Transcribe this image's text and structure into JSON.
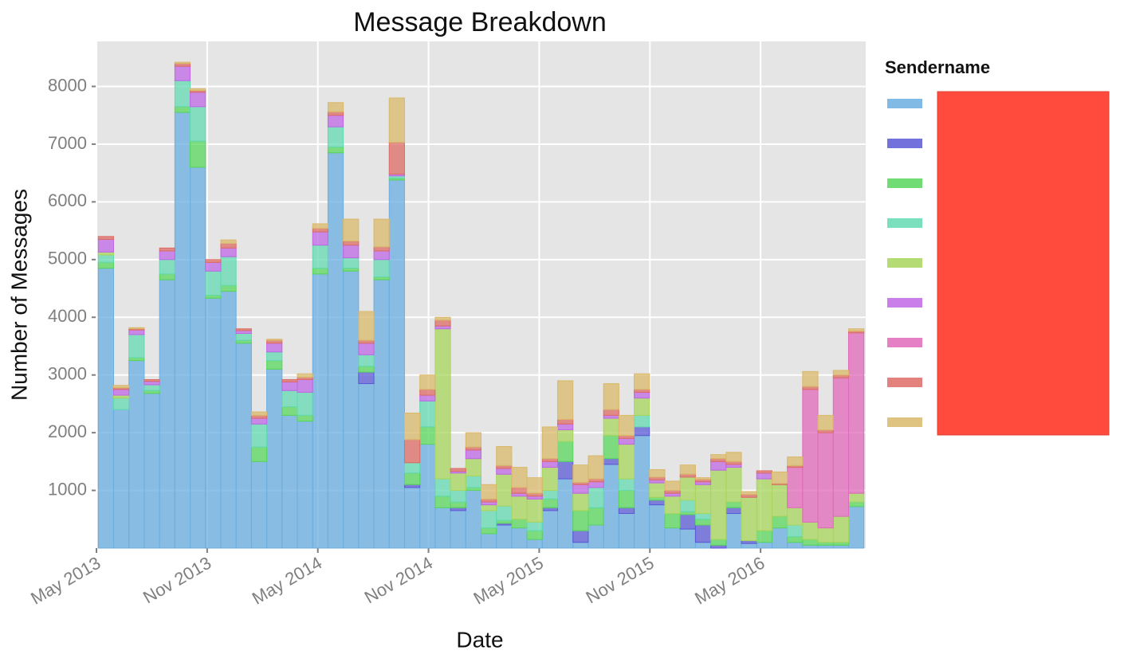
{
  "chart_data": {
    "type": "histogram",
    "title": "Message Breakdown",
    "x_label": "Date",
    "y_label": "Number of Messages",
    "legend_title": "Sendername",
    "bins": [
      0.1,
      0.93,
      1.76,
      2.59,
      3.42,
      4.25,
      5.08,
      5.91,
      6.74,
      7.57,
      8.4,
      9.23,
      10.06,
      10.89,
      11.72,
      12.55,
      13.38,
      14.21,
      15.04,
      15.87,
      16.7,
      17.53,
      18.36,
      19.19,
      20.02,
      20.85,
      21.68,
      22.51,
      23.34,
      24.17,
      25,
      25.83,
      26.66,
      27.49,
      28.32,
      29.15,
      29.98,
      30.81,
      31.64,
      32.47,
      33.3,
      34.13,
      34.96,
      35.79,
      36.62,
      37.45,
      38.28,
      39.11,
      39.94,
      40.77,
      41.6
    ],
    "stacked": true,
    "grid": true,
    "legend": "right",
    "xlim": [
      0,
      41.7
    ],
    "xticks": [
      {
        "value": 0,
        "label": "May 2013"
      },
      {
        "value": 6,
        "label": "Nov 2013"
      },
      {
        "value": 12,
        "label": "May 2014"
      },
      {
        "value": 18,
        "label": "Nov 2014"
      },
      {
        "value": 24,
        "label": "May 2015"
      },
      {
        "value": 30,
        "label": "Nov 2015"
      },
      {
        "value": 36,
        "label": "May 2016"
      }
    ],
    "ylim": [
      0,
      8780
    ],
    "yticks": [
      1000,
      2000,
      3000,
      4000,
      5000,
      6000,
      7000,
      8000
    ],
    "series": [
      {
        "color": "#6aaee0",
        "values": [
          4850,
          2400,
          3250,
          2680,
          4650,
          7550,
          6600,
          4330,
          4450,
          3550,
          1500,
          3100,
          2300,
          2200,
          4750,
          6850,
          4800,
          2850,
          4650,
          6380,
          1050,
          1800,
          700,
          650,
          1000,
          250,
          400,
          350,
          150,
          650,
          1200,
          100,
          400,
          1450,
          600,
          1950,
          750,
          350,
          330,
          100,
          0,
          600,
          80,
          100,
          350,
          100,
          50,
          50,
          50,
          720
        ]
      },
      {
        "color": "#5b59d6",
        "values": [
          0,
          0,
          0,
          0,
          0,
          0,
          0,
          0,
          0,
          0,
          0,
          0,
          0,
          0,
          0,
          0,
          0,
          200,
          0,
          0,
          50,
          0,
          0,
          50,
          0,
          0,
          30,
          0,
          0,
          50,
          300,
          200,
          0,
          100,
          100,
          150,
          80,
          0,
          250,
          300,
          50,
          100,
          50,
          0,
          0,
          0,
          0,
          0,
          0,
          0
        ]
      },
      {
        "color": "#58d65c",
        "values": [
          100,
          0,
          50,
          50,
          100,
          100,
          450,
          50,
          100,
          50,
          250,
          150,
          150,
          100,
          100,
          100,
          50,
          100,
          50,
          30,
          200,
          300,
          200,
          100,
          50,
          100,
          50,
          150,
          150,
          150,
          350,
          350,
          300,
          400,
          300,
          0,
          50,
          250,
          50,
          100,
          100,
          100,
          0,
          200,
          200,
          100,
          100,
          50,
          50,
          80
        ]
      },
      {
        "color": "#62d9b0",
        "values": [
          130,
          200,
          400,
          100,
          250,
          450,
          600,
          420,
          500,
          120,
          400,
          150,
          280,
          400,
          400,
          350,
          180,
          200,
          300,
          40,
          180,
          450,
          300,
          200,
          200,
          300,
          250,
          0,
          150,
          150,
          0,
          0,
          350,
          0,
          200,
          200,
          0,
          0,
          200,
          100,
          0,
          0,
          0,
          0,
          0,
          200,
          0,
          0,
          0,
          0
        ]
      },
      {
        "color": "#a8d65c",
        "values": [
          50,
          50,
          0,
          0,
          0,
          0,
          0,
          0,
          0,
          0,
          0,
          0,
          0,
          0,
          0,
          0,
          0,
          0,
          0,
          0,
          0,
          0,
          2600,
          300,
          300,
          100,
          550,
          400,
          400,
          400,
          200,
          300,
          0,
          300,
          600,
          300,
          250,
          300,
          400,
          500,
          1200,
          600,
          750,
          900,
          550,
          300,
          300,
          250,
          450,
          150
        ]
      },
      {
        "color": "#bf67e6",
        "values": [
          220,
          100,
          80,
          60,
          150,
          250,
          250,
          150,
          150,
          50,
          100,
          150,
          150,
          220,
          230,
          200,
          220,
          200,
          150,
          30,
          0,
          100,
          50,
          30,
          150,
          50,
          100,
          50,
          50,
          100,
          100,
          150,
          100,
          50,
          100,
          100,
          50,
          50,
          0,
          50,
          150,
          50,
          0,
          100,
          0,
          0,
          0,
          0,
          0,
          0
        ]
      },
      {
        "color": "#e06aba",
        "values": [
          0,
          0,
          0,
          0,
          0,
          0,
          0,
          0,
          0,
          0,
          0,
          0,
          0,
          0,
          0,
          0,
          0,
          0,
          0,
          0,
          0,
          0,
          0,
          0,
          0,
          0,
          0,
          0,
          0,
          0,
          0,
          0,
          0,
          0,
          0,
          0,
          0,
          0,
          0,
          0,
          0,
          0,
          0,
          0,
          0,
          700,
          2300,
          1650,
          2400,
          2780
        ]
      },
      {
        "color": "#dd6b66",
        "values": [
          50,
          30,
          20,
          30,
          50,
          50,
          30,
          50,
          80,
          30,
          50,
          50,
          40,
          40,
          60,
          60,
          70,
          50,
          70,
          550,
          400,
          100,
          100,
          50,
          50,
          50,
          50,
          100,
          50,
          50,
          80,
          40,
          50,
          100,
          50,
          50,
          50,
          50,
          50,
          40,
          50,
          50,
          50,
          40,
          20,
          30,
          50,
          50,
          50,
          30
        ]
      },
      {
        "color": "#d9b86a",
        "values": [
          0,
          40,
          20,
          0,
          0,
          20,
          30,
          0,
          60,
          0,
          60,
          20,
          0,
          60,
          80,
          160,
          380,
          500,
          480,
          770,
          460,
          250,
          50,
          0,
          250,
          250,
          330,
          350,
          270,
          550,
          670,
          300,
          400,
          450,
          350,
          270,
          130,
          160,
          160,
          30,
          70,
          160,
          50,
          0,
          200,
          150,
          260,
          250,
          80,
          40
        ]
      }
    ]
  }
}
